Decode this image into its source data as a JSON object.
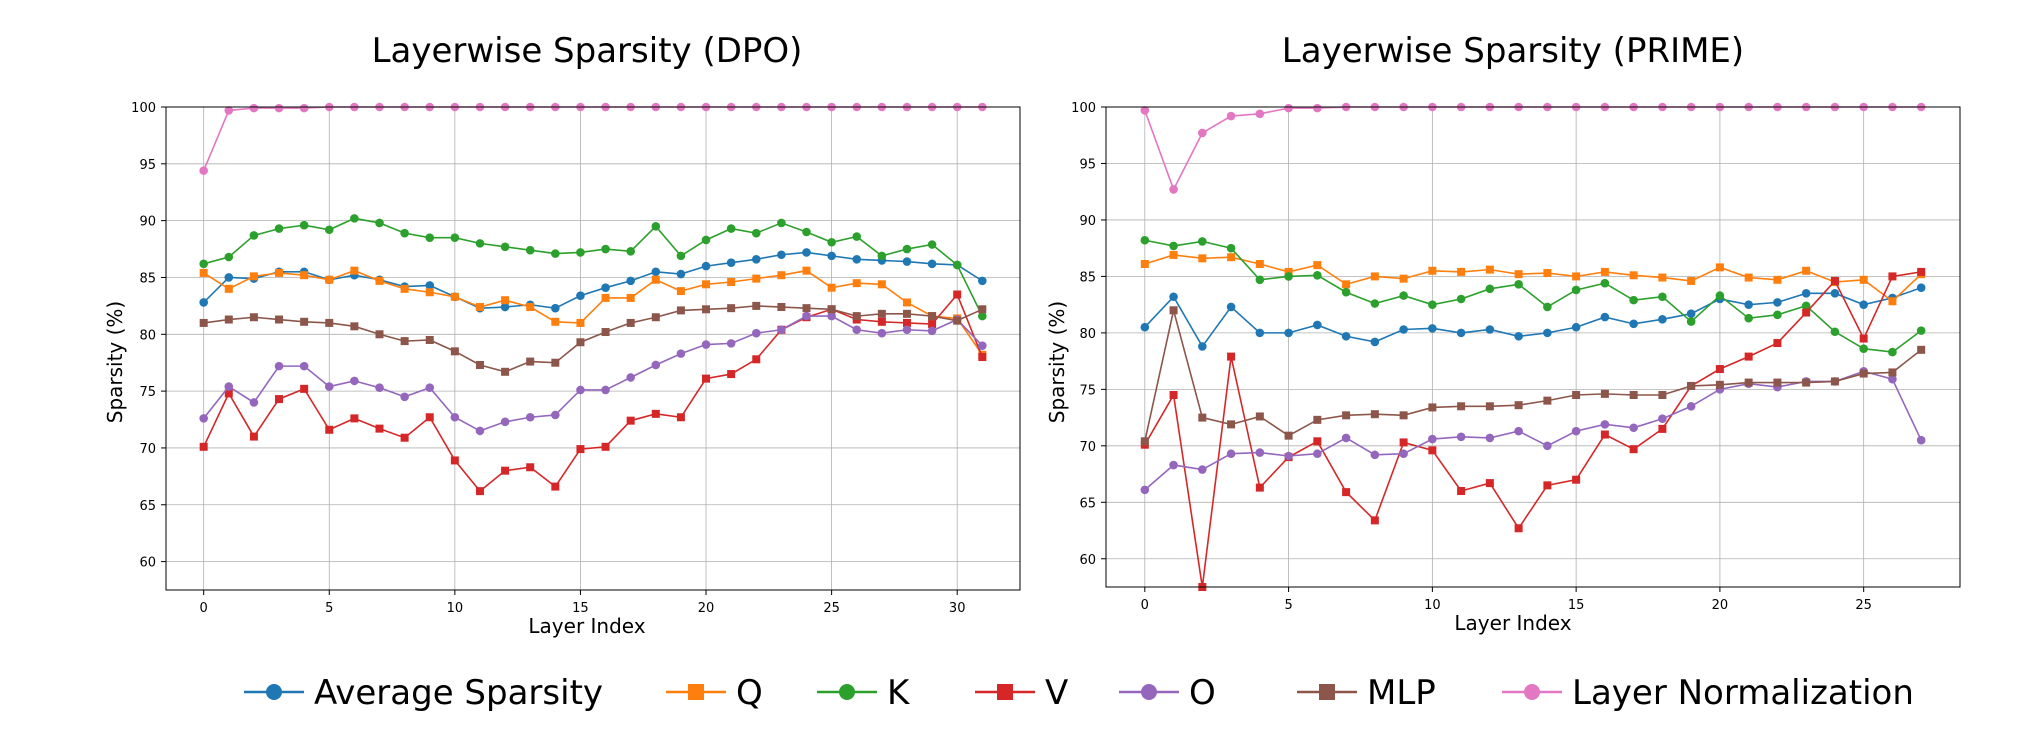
{
  "chart_data": [
    {
      "type": "line",
      "title": "Layerwise Sparsity (DPO)",
      "xlabel": "Layer Index",
      "ylabel": "Sparsity (%)",
      "xlim": [
        -1.5,
        32.5
      ],
      "ylim": [
        57.5,
        100
      ],
      "xticks": [
        0,
        5,
        10,
        15,
        20,
        25,
        30
      ],
      "yticks": [
        60,
        65,
        70,
        75,
        80,
        85,
        90,
        95,
        100
      ],
      "grid": true,
      "x": [
        0,
        1,
        2,
        3,
        4,
        5,
        6,
        7,
        8,
        9,
        10,
        11,
        12,
        13,
        14,
        15,
        16,
        17,
        18,
        19,
        20,
        21,
        22,
        23,
        24,
        25,
        26,
        27,
        28,
        29,
        30,
        31
      ],
      "series": [
        {
          "name": "Average Sparsity",
          "values": [
            82.8,
            85.0,
            84.9,
            85.5,
            85.5,
            84.8,
            85.2,
            84.8,
            84.2,
            84.3,
            83.3,
            82.3,
            82.4,
            82.6,
            82.3,
            83.4,
            84.1,
            84.7,
            85.5,
            85.3,
            86.0,
            86.3,
            86.6,
            87.0,
            87.2,
            86.9,
            86.6,
            86.5,
            86.4,
            86.2,
            86.1,
            84.7
          ]
        },
        {
          "name": "Q",
          "values": [
            85.4,
            84.0,
            85.1,
            85.4,
            85.2,
            84.8,
            85.6,
            84.7,
            84.0,
            83.7,
            83.3,
            82.4,
            83.0,
            82.4,
            81.1,
            81.0,
            83.2,
            83.2,
            84.8,
            83.8,
            84.4,
            84.6,
            84.9,
            85.2,
            85.6,
            84.1,
            84.5,
            84.4,
            82.8,
            81.6,
            81.4,
            78.2
          ]
        },
        {
          "name": "K",
          "values": [
            86.2,
            86.8,
            88.7,
            89.3,
            89.6,
            89.2,
            90.2,
            89.8,
            88.9,
            88.5,
            88.5,
            88.0,
            87.7,
            87.4,
            87.1,
            87.2,
            87.5,
            87.3,
            89.5,
            86.9,
            88.3,
            89.3,
            88.9,
            89.8,
            89.0,
            88.1,
            88.6,
            86.9,
            87.5,
            87.9,
            86.1,
            81.6
          ]
        },
        {
          "name": "V",
          "values": [
            70.1,
            74.8,
            71.0,
            74.3,
            75.2,
            71.6,
            72.6,
            71.7,
            70.9,
            72.7,
            68.9,
            66.2,
            68.0,
            68.3,
            66.6,
            69.9,
            70.1,
            72.4,
            73.0,
            72.7,
            76.1,
            76.5,
            77.8,
            80.4,
            81.5,
            82.2,
            81.3,
            81.1,
            81.0,
            80.9,
            83.5,
            78.0
          ]
        },
        {
          "name": "O",
          "values": [
            72.6,
            75.4,
            74.0,
            77.2,
            77.2,
            75.4,
            75.9,
            75.3,
            74.5,
            75.3,
            72.7,
            71.5,
            72.3,
            72.7,
            72.9,
            75.1,
            75.1,
            76.2,
            77.3,
            78.3,
            79.1,
            79.2,
            80.1,
            80.4,
            81.6,
            81.6,
            80.4,
            80.1,
            80.4,
            80.3,
            81.3,
            79.0
          ]
        },
        {
          "name": "MLP",
          "values": [
            81.0,
            81.3,
            81.5,
            81.3,
            81.1,
            81.0,
            80.7,
            80.0,
            79.4,
            79.5,
            78.5,
            77.3,
            76.7,
            77.6,
            77.5,
            79.3,
            80.2,
            81.0,
            81.5,
            82.1,
            82.2,
            82.3,
            82.5,
            82.4,
            82.3,
            82.2,
            81.6,
            81.8,
            81.8,
            81.6,
            81.2,
            82.2
          ]
        },
        {
          "name": "Layer Normalization",
          "values": [
            94.4,
            99.7,
            99.9,
            99.9,
            99.9,
            100.0,
            100.0,
            100.0,
            100.0,
            100.0,
            100.0,
            100.0,
            100.0,
            100.0,
            100.0,
            100.0,
            100.0,
            100.0,
            100.0,
            100.0,
            100.0,
            100.0,
            100.0,
            100.0,
            100.0,
            100.0,
            100.0,
            100.0,
            100.0,
            100.0,
            100.0,
            100.0
          ]
        }
      ]
    },
    {
      "type": "line",
      "title": "Layerwise Sparsity (PRIME)",
      "xlabel": "Layer Index",
      "ylabel": "Sparsity (%)",
      "xlim": [
        -1.35,
        28.35
      ],
      "ylim": [
        57.5,
        100
      ],
      "xticks": [
        0,
        5,
        10,
        15,
        20,
        25
      ],
      "yticks": [
        60,
        65,
        70,
        75,
        80,
        85,
        90,
        95,
        100
      ],
      "grid": true,
      "x": [
        0,
        1,
        2,
        3,
        4,
        5,
        6,
        7,
        8,
        9,
        10,
        11,
        12,
        13,
        14,
        15,
        16,
        17,
        18,
        19,
        20,
        21,
        22,
        23,
        24,
        25,
        26,
        27
      ],
      "series": [
        {
          "name": "Average Sparsity",
          "values": [
            80.5,
            83.2,
            78.8,
            82.3,
            80.0,
            80.0,
            80.7,
            79.7,
            79.2,
            80.3,
            80.4,
            80.0,
            80.3,
            79.7,
            80.0,
            80.5,
            81.4,
            80.8,
            81.2,
            81.7,
            83.0,
            82.5,
            82.7,
            83.5,
            83.5,
            82.5,
            83.1,
            84.0
          ]
        },
        {
          "name": "Q",
          "values": [
            86.1,
            86.9,
            86.6,
            86.7,
            86.1,
            85.4,
            86.0,
            84.3,
            85.0,
            84.8,
            85.5,
            85.4,
            85.6,
            85.2,
            85.3,
            85.0,
            85.4,
            85.1,
            84.9,
            84.6,
            85.8,
            84.9,
            84.7,
            85.5,
            84.5,
            84.7,
            82.8,
            85.2
          ]
        },
        {
          "name": "K",
          "values": [
            88.2,
            87.7,
            88.1,
            87.5,
            84.7,
            85.0,
            85.1,
            83.6,
            82.6,
            83.3,
            82.5,
            83.0,
            83.9,
            84.3,
            82.3,
            83.8,
            84.4,
            82.9,
            83.2,
            81.0,
            83.3,
            81.3,
            81.6,
            82.4,
            80.1,
            78.6,
            78.3,
            80.2
          ]
        },
        {
          "name": "V",
          "values": [
            70.1,
            74.5,
            57.5,
            77.9,
            66.3,
            69.0,
            70.4,
            65.9,
            63.4,
            70.3,
            69.6,
            66.0,
            66.7,
            62.7,
            66.5,
            67.0,
            71.0,
            69.7,
            71.5,
            75.3,
            76.8,
            77.9,
            79.1,
            81.8,
            84.6,
            79.5,
            85.0,
            85.4
          ]
        },
        {
          "name": "O",
          "values": [
            66.1,
            68.3,
            67.9,
            69.3,
            69.4,
            69.1,
            69.3,
            70.7,
            69.2,
            69.3,
            70.6,
            70.8,
            70.7,
            71.3,
            70.0,
            71.3,
            71.9,
            71.6,
            72.4,
            73.5,
            75.0,
            75.5,
            75.2,
            75.7,
            75.7,
            76.6,
            75.9,
            70.5
          ]
        },
        {
          "name": "MLP",
          "values": [
            70.4,
            82.0,
            72.5,
            71.9,
            72.6,
            70.9,
            72.3,
            72.7,
            72.8,
            72.7,
            73.4,
            73.5,
            73.5,
            73.6,
            74.0,
            74.5,
            74.6,
            74.5,
            74.5,
            75.3,
            75.4,
            75.6,
            75.6,
            75.6,
            75.7,
            76.4,
            76.5,
            78.5
          ]
        },
        {
          "name": "Layer Normalization",
          "values": [
            99.7,
            92.7,
            97.7,
            99.2,
            99.4,
            99.9,
            99.9,
            100.0,
            100.0,
            100.0,
            100.0,
            100.0,
            100.0,
            100.0,
            100.0,
            100.0,
            100.0,
            100.0,
            100.0,
            100.0,
            100.0,
            100.0,
            100.0,
            100.0,
            100.0,
            100.0,
            100.0,
            100.0
          ]
        }
      ]
    }
  ],
  "legend": {
    "placement": "bottom",
    "items": [
      {
        "label": "Average Sparsity",
        "color": "#1f77b4",
        "marker": "circle"
      },
      {
        "label": "Q",
        "color": "#ff7f0e",
        "marker": "square"
      },
      {
        "label": "K",
        "color": "#2ca02c",
        "marker": "circle"
      },
      {
        "label": "V",
        "color": "#d62728",
        "marker": "square"
      },
      {
        "label": "O",
        "color": "#9467bd",
        "marker": "circle"
      },
      {
        "label": "MLP",
        "color": "#8c564b",
        "marker": "square"
      },
      {
        "label": "Layer Normalization",
        "color": "#e377c2",
        "marker": "circle"
      }
    ]
  }
}
